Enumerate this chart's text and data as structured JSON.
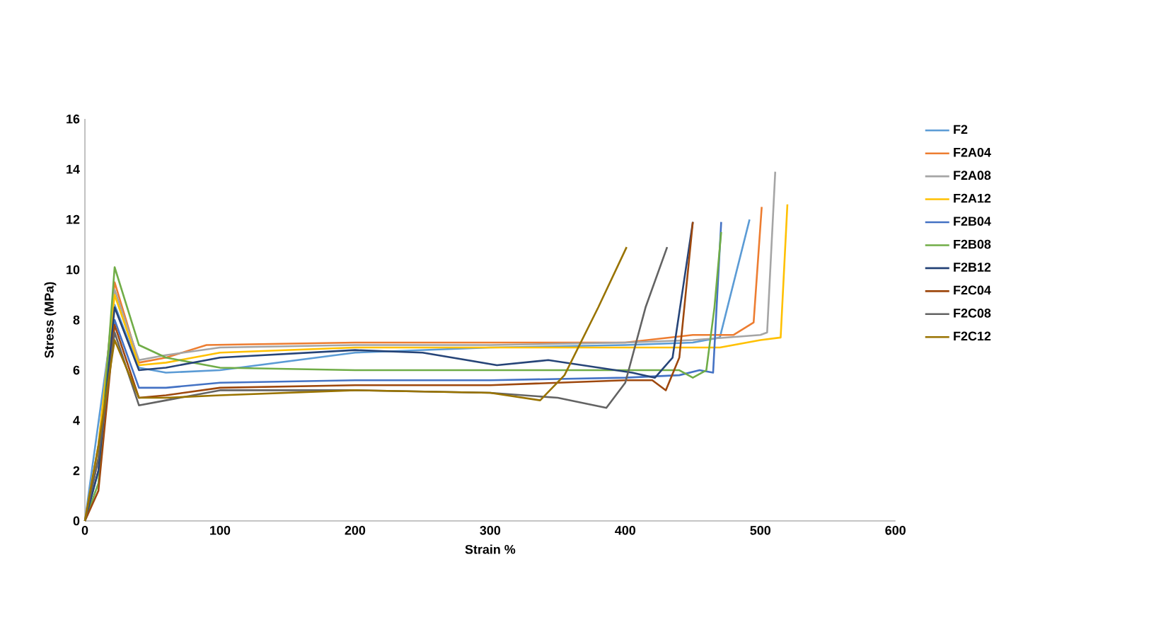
{
  "chart_data": {
    "type": "line",
    "xlabel": "Strain %",
    "ylabel": "Stress (MPa)",
    "xlim": [
      0,
      600
    ],
    "ylim": [
      0,
      16
    ],
    "xticks": [
      0,
      100,
      200,
      300,
      400,
      500,
      600
    ],
    "yticks": [
      0,
      2,
      4,
      6,
      8,
      10,
      12,
      14,
      16
    ],
    "grid": false,
    "legend": "right",
    "series": [
      {
        "name": "F2",
        "color": "#5b9bd5",
        "x": [
          0,
          10,
          22,
          40,
          60,
          100,
          200,
          300,
          400,
          450,
          470,
          492
        ],
        "values": [
          0,
          null,
          8.6,
          6.1,
          5.9,
          6.0,
          6.7,
          6.9,
          7.0,
          7.1,
          7.3,
          12
        ]
      },
      {
        "name": "F2A04",
        "color": "#ed7d31",
        "x": [
          0,
          10,
          22,
          40,
          60,
          90,
          200,
          300,
          400,
          450,
          480,
          495,
          501
        ],
        "values": [
          0,
          2.5,
          9.5,
          6.3,
          6.5,
          7.0,
          7.1,
          7.1,
          7.1,
          7.4,
          7.4,
          7.9,
          12.5
        ]
      },
      {
        "name": "F2A08",
        "color": "#a5a5a5",
        "x": [
          0,
          10,
          22,
          40,
          60,
          100,
          200,
          300,
          400,
          450,
          500,
          505,
          511
        ],
        "values": [
          0,
          3.0,
          9.2,
          6.4,
          6.6,
          6.9,
          7.0,
          7.0,
          7.1,
          7.2,
          7.4,
          7.5,
          13.9
        ]
      },
      {
        "name": "F2A12",
        "color": "#ffc000",
        "x": [
          0,
          10,
          22,
          40,
          60,
          100,
          200,
          300,
          400,
          450,
          470,
          500,
          515,
          520
        ],
        "values": [
          0,
          3.0,
          9.0,
          6.2,
          6.3,
          6.7,
          6.9,
          6.9,
          6.9,
          6.9,
          6.9,
          7.2,
          7.3,
          12.6
        ]
      },
      {
        "name": "F2B04",
        "color": "#4472c4",
        "x": [
          0,
          10,
          22,
          40,
          60,
          100,
          200,
          300,
          400,
          440,
          455,
          465,
          471
        ],
        "values": [
          0,
          2.0,
          8.0,
          5.3,
          5.3,
          5.5,
          5.6,
          5.6,
          5.7,
          5.8,
          6.0,
          5.9,
          11.9
        ]
      },
      {
        "name": "F2B08",
        "color": "#70ad47",
        "x": [
          0,
          10,
          22,
          40,
          60,
          100,
          200,
          300,
          400,
          440,
          450,
          460,
          466,
          471
        ],
        "values": [
          0,
          1.5,
          10.1,
          7.0,
          6.5,
          6.1,
          6.0,
          6.0,
          6.0,
          6.0,
          5.7,
          6.0,
          8.5,
          11.5
        ]
      },
      {
        "name": "F2B12",
        "color": "#264478",
        "x": [
          0,
          10,
          22,
          40,
          60,
          100,
          200,
          250,
          305,
          343,
          405,
          422,
          435,
          450
        ],
        "values": [
          0,
          2.0,
          8.5,
          6.0,
          6.1,
          6.5,
          6.8,
          6.7,
          6.2,
          6.4,
          5.9,
          5.7,
          6.5,
          11.9
        ]
      },
      {
        "name": "F2C04",
        "color": "#9e480e",
        "x": [
          0,
          10,
          22,
          40,
          60,
          100,
          200,
          300,
          400,
          420,
          430,
          440,
          450
        ],
        "values": [
          0,
          1.2,
          7.8,
          4.9,
          5.0,
          5.3,
          5.4,
          5.4,
          5.6,
          5.6,
          5.2,
          6.5,
          11.9
        ]
      },
      {
        "name": "F2C08",
        "color": "#636363",
        "x": [
          0,
          10,
          22,
          40,
          60,
          100,
          200,
          300,
          350,
          386,
          400,
          415,
          431
        ],
        "values": [
          0,
          2.5,
          7.5,
          4.6,
          4.8,
          5.2,
          5.2,
          5.1,
          4.9,
          4.5,
          5.5,
          8.5,
          10.9
        ]
      },
      {
        "name": "F2C12",
        "color": "#997300",
        "x": [
          0,
          10,
          22,
          40,
          60,
          100,
          200,
          300,
          337,
          355,
          380,
          401
        ],
        "values": [
          0,
          3.0,
          7.2,
          4.9,
          4.9,
          5.0,
          5.2,
          5.1,
          4.8,
          5.8,
          8.5,
          10.9
        ]
      }
    ]
  }
}
